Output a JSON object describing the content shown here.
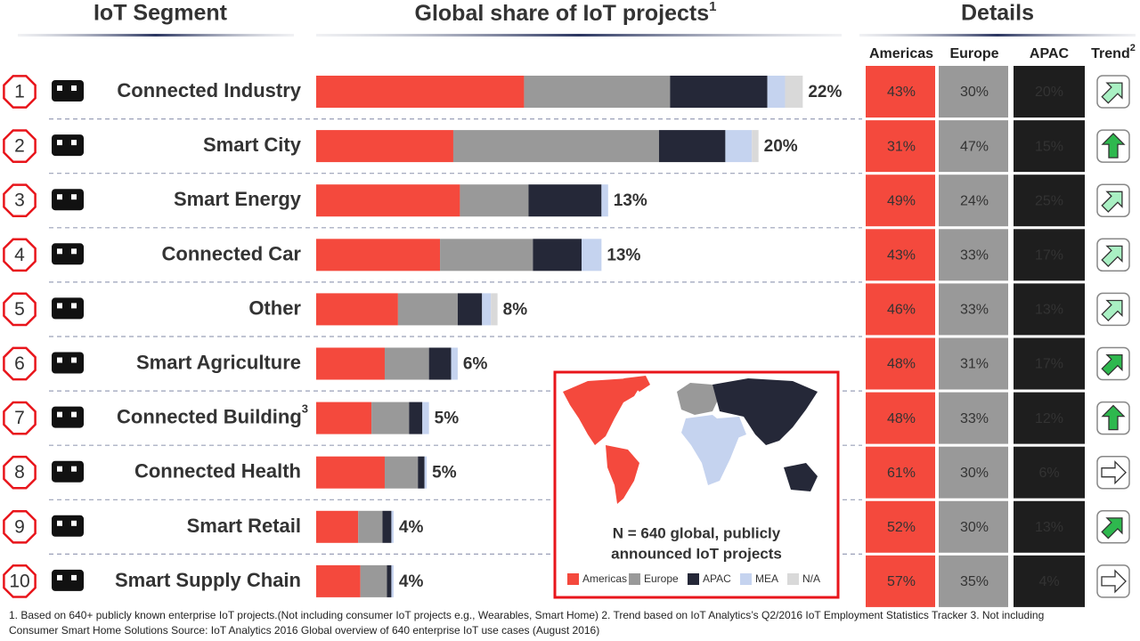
{
  "headers": {
    "segment": "IoT Segment",
    "share": "Global share of IoT projects",
    "share_sup": "1",
    "details": "Details"
  },
  "ranks": [
    "1",
    "2",
    "3",
    "4",
    "5",
    "6",
    "7",
    "8",
    "9",
    "10"
  ],
  "chart_data": {
    "type": "stacked-bar-horizontal",
    "categories": [
      "Connected Industry",
      "Smart City",
      "Smart Energy",
      "Connected Car",
      "Other",
      "Smart Agriculture",
      "Connected Building",
      "Connected Health",
      "Smart Retail",
      "Smart Supply Chain"
    ],
    "category_superscripts": {
      "6": "3"
    },
    "xlim": [
      0,
      24
    ],
    "series": [
      {
        "name": "Americas",
        "color": "#f4493d",
        "values": [
          9.4,
          6.2,
          6.5,
          5.6,
          3.7,
          3.1,
          2.5,
          3.1,
          1.9,
          2.0
        ]
      },
      {
        "name": "Europe",
        "color": "#999999",
        "values": [
          6.6,
          9.3,
          3.1,
          4.2,
          2.7,
          2.0,
          1.7,
          1.5,
          1.1,
          1.2
        ]
      },
      {
        "name": "APAC",
        "color": "#252838",
        "values": [
          4.4,
          3.0,
          3.3,
          2.2,
          1.1,
          1.0,
          0.6,
          0.3,
          0.4,
          0.2
        ]
      },
      {
        "name": "MEA",
        "color": "#c5d3ef",
        "values": [
          0.8,
          1.2,
          0.3,
          0.9,
          0.4,
          0.3,
          0.3,
          0.1,
          0.1,
          0.1
        ]
      },
      {
        "name": "N/A",
        "color": "#d9d9d9",
        "values": [
          0.8,
          0.3,
          0,
          0,
          0.3,
          0,
          0,
          0,
          0,
          0
        ]
      }
    ],
    "totals": [
      22,
      20,
      13,
      13,
      8,
      6,
      5,
      5,
      4,
      4
    ],
    "total_labels": [
      "22%",
      "20%",
      "13%",
      "13%",
      "8%",
      "6%",
      "5%",
      "5%",
      "4%",
      "4%"
    ]
  },
  "map_box": {
    "lines": [
      "N = 640 global, publicly",
      "announced IoT projects"
    ],
    "border_color": "#e8151b"
  },
  "details": {
    "columns": [
      "Americas",
      "Europe",
      "APAC"
    ],
    "column_colors": [
      "#f4493d",
      "#999999",
      "#1e1e1e"
    ],
    "trend_header": "Trend",
    "trend_sup": "2",
    "rows": [
      [
        "43%",
        "30%",
        "20%"
      ],
      [
        "31%",
        "47%",
        "15%"
      ],
      [
        "49%",
        "24%",
        "25%"
      ],
      [
        "43%",
        "33%",
        "17%"
      ],
      [
        "46%",
        "33%",
        "13%"
      ],
      [
        "48%",
        "31%",
        "17%"
      ],
      [
        "48%",
        "33%",
        "12%"
      ],
      [
        "61%",
        "30%",
        "6%"
      ],
      [
        "52%",
        "30%",
        "13%"
      ],
      [
        "57%",
        "35%",
        "4%"
      ]
    ],
    "trends": [
      {
        "direction": "up-right",
        "color": "#a9f0c3"
      },
      {
        "direction": "up",
        "color": "#2eb84e"
      },
      {
        "direction": "up-right",
        "color": "#a9f0c3"
      },
      {
        "direction": "up-right",
        "color": "#a9f0c3"
      },
      {
        "direction": "up-right",
        "color": "#a9f0c3"
      },
      {
        "direction": "up-right",
        "color": "#2eb84e"
      },
      {
        "direction": "up",
        "color": "#2eb84e"
      },
      {
        "direction": "right",
        "color": "#ffffff"
      },
      {
        "direction": "up-right",
        "color": "#2eb84e"
      },
      {
        "direction": "right",
        "color": "#ffffff"
      }
    ]
  },
  "footnotes": [
    "1. Based on 640+ publicly known enterprise IoT projects.(Not including consumer IoT projects e.g.,  Wearables, Smart Home) 2. Trend based on IoT Analytics’s Q2/2016 IoT Employment Statistics Tracker  3. Not including",
    "Consumer Smart Home Solutions    Source: IoT Analytics 2016 Global overview of 640 enterprise IoT use cases (August 2016)"
  ]
}
